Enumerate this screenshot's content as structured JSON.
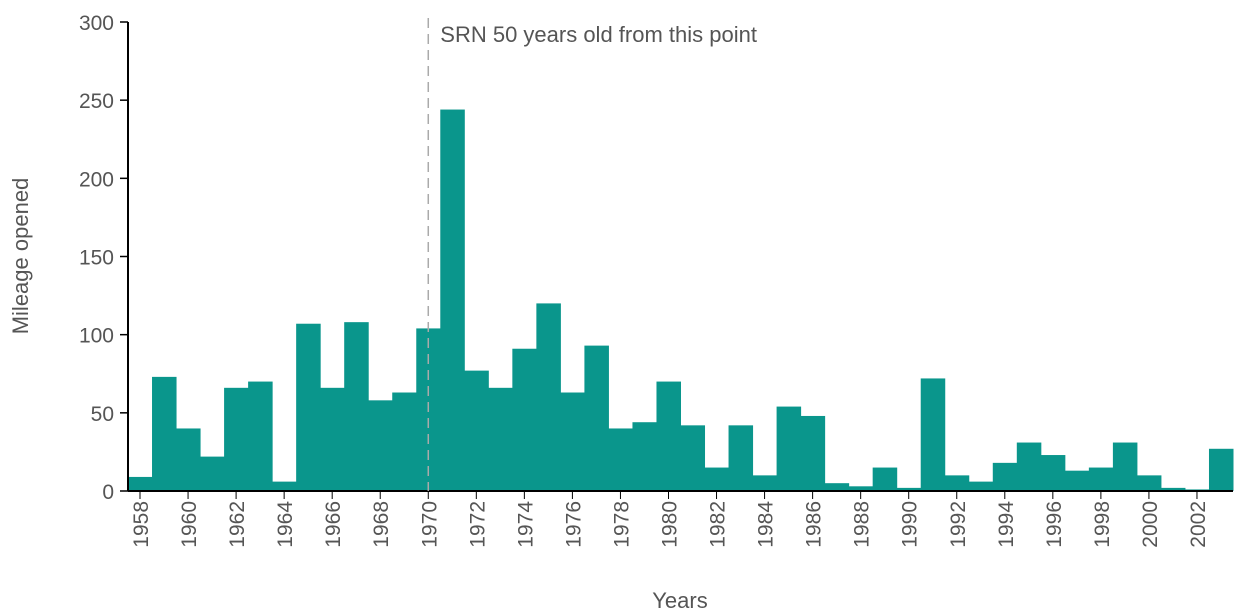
{
  "chart_data": {
    "type": "bar",
    "categories": [
      "1958",
      null,
      "1960",
      null,
      "1962",
      null,
      "1964",
      null,
      "1966",
      null,
      "1968",
      null,
      "1970",
      null,
      "1972",
      null,
      "1974",
      null,
      "1976",
      null,
      "1978",
      null,
      "1980",
      null,
      "1982",
      null,
      "1984",
      null,
      "1986",
      null,
      "1988",
      null,
      "1990",
      null,
      "1992",
      null,
      "1994",
      null,
      "1996",
      null,
      "1998",
      null,
      "2000",
      null,
      "2002",
      null
    ],
    "values": [
      9,
      73,
      40,
      22,
      66,
      70,
      6,
      107,
      66,
      108,
      58,
      63,
      104,
      244,
      77,
      66,
      91,
      120,
      63,
      93,
      40,
      44,
      70,
      42,
      15,
      42,
      10,
      54,
      48,
      5,
      3,
      15,
      2,
      72,
      10,
      6,
      18,
      31,
      23,
      13,
      15,
      31,
      10,
      2,
      1,
      27
    ],
    "color": "#0a968c",
    "ylim": [
      0,
      300
    ],
    "yticks": [
      0,
      50,
      100,
      150,
      200,
      250,
      300
    ],
    "xlabel": "Years",
    "ylabel": "Mileage opened",
    "annotation": {
      "text": "SRN 50 years old from this point",
      "category": "1970"
    }
  }
}
